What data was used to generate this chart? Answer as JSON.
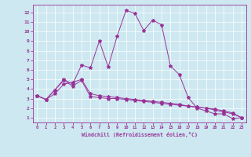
{
  "xlabel": "Windchill (Refroidissement éolien,°C)",
  "bg_color": "#cde8f0",
  "line_color": "#993399",
  "x_ticks": [
    0,
    1,
    2,
    3,
    4,
    5,
    6,
    7,
    8,
    9,
    10,
    11,
    12,
    13,
    14,
    15,
    16,
    17,
    18,
    19,
    20,
    21,
    22,
    23
  ],
  "y_ticks": [
    1,
    2,
    3,
    4,
    5,
    6,
    7,
    8,
    9,
    10,
    11,
    12
  ],
  "ylim": [
    0.5,
    12.8
  ],
  "xlim": [
    -0.5,
    23.5
  ],
  "line1_x": [
    0,
    1,
    2,
    3,
    4,
    5,
    6,
    7,
    8,
    9,
    10,
    11,
    12,
    13,
    14,
    15,
    16,
    17,
    18,
    19,
    20,
    21,
    22,
    23
  ],
  "line1_y": [
    3.3,
    2.9,
    3.9,
    5.0,
    4.5,
    6.5,
    6.2,
    9.0,
    6.3,
    9.5,
    12.2,
    11.9,
    10.1,
    11.2,
    10.7,
    6.4,
    5.5,
    3.1,
    2.0,
    1.7,
    1.4,
    1.4,
    0.9,
    1.0
  ],
  "line2_x": [
    0,
    1,
    2,
    3,
    4,
    5,
    6,
    7,
    8,
    9,
    10,
    11,
    12,
    13,
    14,
    15,
    16,
    17,
    18,
    19,
    20,
    21,
    22,
    23
  ],
  "line2_y": [
    3.3,
    2.9,
    3.9,
    4.9,
    4.3,
    4.9,
    3.2,
    3.1,
    3.0,
    3.0,
    2.9,
    2.8,
    2.7,
    2.6,
    2.5,
    2.4,
    2.3,
    2.2,
    2.1,
    2.0,
    1.9,
    1.7,
    1.5,
    1.0
  ],
  "line3_x": [
    0,
    1,
    2,
    3,
    4,
    5,
    6,
    7,
    8,
    9,
    10,
    11,
    12,
    13,
    14,
    15,
    16,
    17,
    18,
    19,
    20,
    21,
    22,
    23
  ],
  "line3_y": [
    3.3,
    2.9,
    3.5,
    4.5,
    4.7,
    5.0,
    3.5,
    3.3,
    3.2,
    3.1,
    3.0,
    2.9,
    2.8,
    2.7,
    2.6,
    2.5,
    2.4,
    2.2,
    2.1,
    2.0,
    1.8,
    1.6,
    1.4,
    1.0
  ]
}
